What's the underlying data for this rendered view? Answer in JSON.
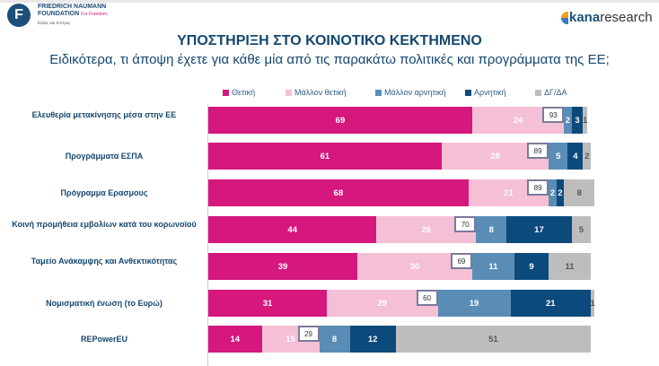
{
  "header": {
    "left_logo": "FRIEDRICH NAUMANN FOUNDATION For Freedom. Ελλάς και Κύπρος",
    "right_logo": "kanaresearch"
  },
  "title": "ΥΠΟΣΤΗΡΙΞΗ ΣΤΟ ΚΟΙΝΟΤΙΚΟ ΚΕΚΤΗΜΕΝΟ",
  "subtitle": "Ειδικότερα, τι άποψη έχετε για κάθε μία από τις παρακάτω πολιτικές και προγράμματα της ΕΕ;",
  "chart_data": {
    "type": "bar",
    "orientation": "horizontal",
    "stacked": true,
    "legend_position": "top",
    "xlim": [
      0,
      100
    ],
    "series": [
      {
        "name": "Θετική",
        "color": "#d6177d",
        "values": [
          69,
          61,
          68,
          44,
          39,
          31,
          14
        ]
      },
      {
        "name": "Μάλλον θετική",
        "color": "#f5bfd6",
        "values": [
          24,
          28,
          21,
          26,
          30,
          29,
          15
        ]
      },
      {
        "name": "Μάλλον αρνητική",
        "color": "#5a8db5",
        "values": [
          2,
          5,
          2,
          8,
          11,
          19,
          8
        ]
      },
      {
        "name": "Αρνητική",
        "color": "#0d4a7c",
        "values": [
          3,
          4,
          2,
          17,
          9,
          21,
          12
        ]
      },
      {
        "name": "ΔΓ/ΔΑ",
        "color": "#bdbdbd",
        "values": [
          1,
          2,
          8,
          5,
          11,
          1,
          51
        ]
      }
    ],
    "categories": [
      "Ελευθερία μετακίνησης μέσα στην ΕΕ",
      "Προγράμματα ΕΣΠΑ",
      "Πρόγραμμα Ερασμους",
      "Κοινή προμήθεια εμβολίων κατά του κορωνοϊού",
      "Ταμείο Ανάκαμψης και Ανθεκτικότητας",
      "Νομισματική ένωση (το Ευρώ)",
      "REPowerEU"
    ],
    "net_positive": [
      "93",
      "89",
      "89",
      "70",
      "69",
      "60",
      "29"
    ]
  }
}
